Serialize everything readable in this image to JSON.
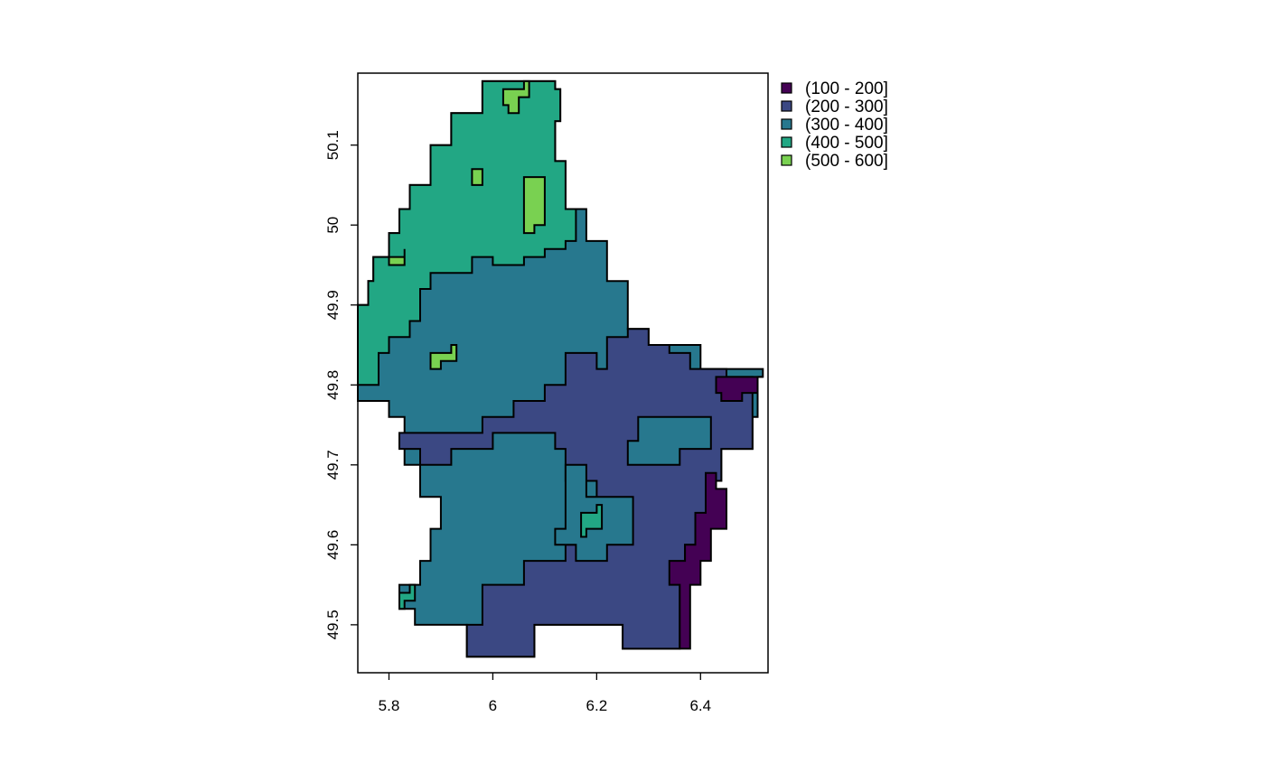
{
  "chart_data": {
    "type": "choropleth",
    "x_axis": {
      "range": [
        5.74,
        6.53
      ],
      "ticks": [
        5.8,
        6,
        6.2,
        6.4
      ],
      "tick_labels": [
        "5.8",
        "6",
        "6.2",
        "6.4"
      ]
    },
    "y_axis": {
      "range": [
        49.44,
        50.19
      ],
      "ticks": [
        49.5,
        49.6,
        49.7,
        49.8,
        49.9,
        50,
        50.1
      ],
      "tick_labels": [
        "49.5",
        "49.6",
        "49.7",
        "49.8",
        "49.9",
        "50",
        "50.1"
      ]
    },
    "legend": {
      "placement": "right",
      "entries": [
        {
          "label": "(100 - 200]",
          "color": "#440154"
        },
        {
          "label": "(200 - 300]",
          "color": "#3b4883"
        },
        {
          "label": "(300 - 400]",
          "color": "#27788e"
        },
        {
          "label": "(400 - 500]",
          "color": "#22a784"
        },
        {
          "label": "(500 - 600]",
          "color": "#79d151"
        }
      ]
    },
    "grid": false,
    "regions": [
      {
        "class": "(300 - 400]",
        "outline": [
          [
            5.74,
            49.8
          ],
          [
            5.74,
            49.9
          ],
          [
            5.76,
            49.93
          ],
          [
            5.77,
            49.96
          ],
          [
            5.8,
            49.99
          ],
          [
            5.82,
            50.02
          ],
          [
            5.84,
            50.05
          ],
          [
            5.88,
            50.1
          ],
          [
            5.92,
            50.14
          ],
          [
            5.98,
            50.18
          ],
          [
            6.04,
            50.18
          ],
          [
            6.12,
            50.17
          ],
          [
            6.13,
            50.13
          ],
          [
            6.12,
            50.08
          ],
          [
            6.14,
            50.02
          ],
          [
            6.18,
            49.98
          ],
          [
            6.22,
            49.93
          ],
          [
            6.26,
            49.87
          ],
          [
            6.3,
            49.85
          ],
          [
            6.35,
            49.85
          ],
          [
            6.4,
            49.82
          ],
          [
            6.52,
            49.81
          ],
          [
            6.51,
            49.76
          ],
          [
            6.5,
            49.72
          ],
          [
            6.44,
            49.68
          ],
          [
            6.43,
            49.63
          ],
          [
            6.4,
            49.6
          ],
          [
            6.37,
            49.55
          ],
          [
            6.36,
            49.47
          ],
          [
            6.31,
            49.47
          ],
          [
            6.25,
            49.5
          ],
          [
            6.15,
            49.5
          ],
          [
            6.08,
            49.46
          ],
          [
            6.0,
            49.46
          ],
          [
            5.95,
            49.5
          ],
          [
            5.85,
            49.52
          ],
          [
            5.82,
            49.55
          ],
          [
            5.86,
            49.58
          ],
          [
            5.88,
            49.62
          ],
          [
            5.9,
            49.66
          ],
          [
            5.86,
            49.7
          ],
          [
            5.83,
            49.76
          ],
          [
            5.8,
            49.78
          ]
        ]
      },
      {
        "class": "(400 - 500]",
        "outline": [
          [
            5.74,
            49.8
          ],
          [
            5.74,
            49.9
          ],
          [
            5.76,
            49.93
          ],
          [
            5.77,
            49.96
          ],
          [
            5.8,
            49.99
          ],
          [
            5.82,
            50.02
          ],
          [
            5.84,
            50.05
          ],
          [
            5.88,
            50.1
          ],
          [
            5.92,
            50.14
          ],
          [
            5.98,
            50.18
          ],
          [
            6.04,
            50.18
          ],
          [
            6.12,
            50.17
          ],
          [
            6.13,
            50.13
          ],
          [
            6.12,
            50.08
          ],
          [
            6.14,
            50.02
          ],
          [
            6.16,
            49.98
          ],
          [
            6.14,
            49.97
          ],
          [
            6.1,
            49.96
          ],
          [
            6.06,
            49.95
          ],
          [
            6.0,
            49.96
          ],
          [
            5.96,
            49.94
          ],
          [
            5.92,
            49.94
          ],
          [
            5.88,
            49.92
          ],
          [
            5.86,
            49.88
          ],
          [
            5.84,
            49.86
          ],
          [
            5.8,
            49.84
          ],
          [
            5.78,
            49.8
          ]
        ]
      },
      {
        "class": "(200 - 300]",
        "outline": [
          [
            5.82,
            49.74
          ],
          [
            5.9,
            49.74
          ],
          [
            5.98,
            49.76
          ],
          [
            6.04,
            49.78
          ],
          [
            6.1,
            49.8
          ],
          [
            6.14,
            49.84
          ],
          [
            6.18,
            49.84
          ],
          [
            6.2,
            49.82
          ],
          [
            6.22,
            49.86
          ],
          [
            6.26,
            49.87
          ],
          [
            6.3,
            49.85
          ],
          [
            6.34,
            49.84
          ],
          [
            6.38,
            49.82
          ],
          [
            6.45,
            49.81
          ],
          [
            6.5,
            49.78
          ],
          [
            6.5,
            49.72
          ],
          [
            6.44,
            49.68
          ],
          [
            6.43,
            49.63
          ],
          [
            6.4,
            49.6
          ],
          [
            6.37,
            49.55
          ],
          [
            6.36,
            49.47
          ],
          [
            6.31,
            49.47
          ],
          [
            6.25,
            49.5
          ],
          [
            6.15,
            49.5
          ],
          [
            6.08,
            49.46
          ],
          [
            6.0,
            49.46
          ],
          [
            5.95,
            49.5
          ],
          [
            5.98,
            49.55
          ],
          [
            6.06,
            49.58
          ],
          [
            6.14,
            49.6
          ],
          [
            6.16,
            49.64
          ],
          [
            6.2,
            49.68
          ],
          [
            6.14,
            49.72
          ],
          [
            6.12,
            49.74
          ],
          [
            6.0,
            49.72
          ],
          [
            5.92,
            49.7
          ],
          [
            5.86,
            49.72
          ]
        ]
      },
      {
        "class": "(300 - 400]",
        "outline": [
          [
            6.14,
            49.7
          ],
          [
            6.18,
            49.66
          ],
          [
            6.26,
            49.66
          ],
          [
            6.27,
            49.6
          ],
          [
            6.22,
            49.58
          ],
          [
            6.16,
            49.6
          ],
          [
            6.12,
            49.62
          ],
          [
            6.14,
            49.66
          ]
        ]
      },
      {
        "class": "(300 - 400]",
        "outline": [
          [
            6.28,
            49.76
          ],
          [
            6.38,
            49.76
          ],
          [
            6.42,
            49.72
          ],
          [
            6.36,
            49.7
          ],
          [
            6.3,
            49.7
          ],
          [
            6.26,
            49.73
          ]
        ]
      },
      {
        "class": "(100 - 200]",
        "outline": [
          [
            6.43,
            49.81
          ],
          [
            6.52,
            49.81
          ],
          [
            6.51,
            49.79
          ],
          [
            6.48,
            49.78
          ],
          [
            6.44,
            49.79
          ]
        ]
      },
      {
        "class": "(100 - 200]",
        "outline": [
          [
            6.43,
            49.69
          ],
          [
            6.41,
            49.64
          ],
          [
            6.39,
            49.6
          ],
          [
            6.37,
            49.58
          ],
          [
            6.34,
            49.55
          ],
          [
            6.36,
            49.47
          ],
          [
            6.38,
            49.47
          ],
          [
            6.38,
            49.55
          ],
          [
            6.4,
            49.58
          ],
          [
            6.42,
            49.62
          ],
          [
            6.45,
            49.67
          ]
        ]
      },
      {
        "class": "(500 - 600]",
        "outline": [
          [
            6.02,
            50.17
          ],
          [
            6.06,
            50.18
          ],
          [
            6.07,
            50.16
          ],
          [
            6.05,
            50.14
          ],
          [
            6.03,
            50.15
          ]
        ]
      },
      {
        "class": "(500 - 600]",
        "outline": [
          [
            6.06,
            50.06
          ],
          [
            6.1,
            50.05
          ],
          [
            6.1,
            50.0
          ],
          [
            6.08,
            49.99
          ],
          [
            6.06,
            50.02
          ]
        ]
      },
      {
        "class": "(500 - 600]",
        "outline": [
          [
            5.88,
            49.84
          ],
          [
            5.92,
            49.85
          ],
          [
            5.93,
            49.83
          ],
          [
            5.9,
            49.82
          ]
        ]
      },
      {
        "class": "(500 - 600]",
        "outline": [
          [
            5.96,
            50.07
          ],
          [
            5.98,
            50.07
          ],
          [
            5.98,
            50.05
          ],
          [
            5.96,
            50.05
          ]
        ]
      },
      {
        "class": "(500 - 600]",
        "outline": [
          [
            5.8,
            49.96
          ],
          [
            5.83,
            49.97
          ],
          [
            5.83,
            49.95
          ],
          [
            5.8,
            49.95
          ]
        ]
      },
      {
        "class": "(400 - 500]",
        "outline": [
          [
            6.17,
            49.64
          ],
          [
            6.2,
            49.65
          ],
          [
            6.21,
            49.62
          ],
          [
            6.18,
            49.61
          ]
        ]
      },
      {
        "class": "(400 - 500]",
        "outline": [
          [
            5.82,
            49.54
          ],
          [
            5.84,
            49.55
          ],
          [
            5.85,
            49.53
          ],
          [
            5.83,
            49.52
          ]
        ]
      }
    ]
  }
}
